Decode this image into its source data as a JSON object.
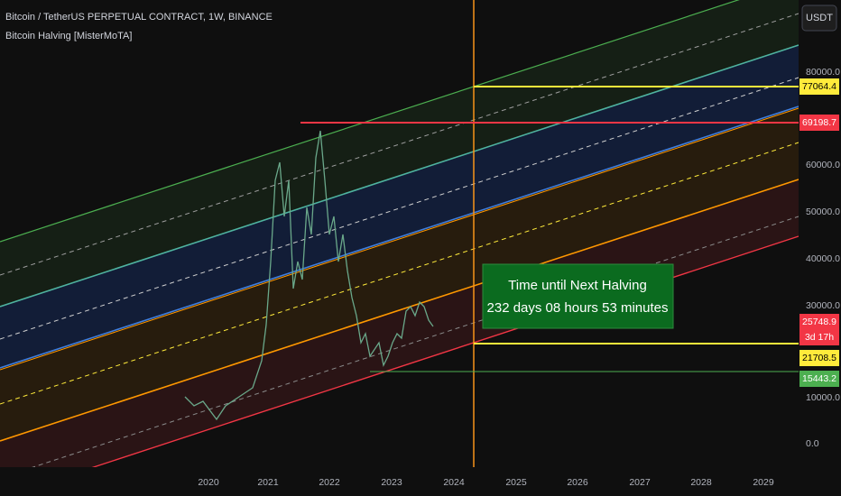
{
  "header": {
    "title": "Bitcoin / TetherUS PERPETUAL CONTRACT, 1W, BINANCE",
    "indicator": "Bitcoin Halving [MisterMoTA]",
    "currency": "USDT"
  },
  "y_axis": [
    "80000.0",
    "60000.0",
    "50000.0",
    "40000.0",
    "30000.0",
    "10000.0",
    "0.0"
  ],
  "x_axis": [
    "2020",
    "2021",
    "2022",
    "2023",
    "2024",
    "2025",
    "2026",
    "2027",
    "2028",
    "2029"
  ],
  "price_tags": {
    "upper_target": "77064.4",
    "ath": "69198.7",
    "last": "25748.9",
    "countdown": "3d 17h",
    "lower_target": "21708.5",
    "low": "15443.2"
  },
  "halving_box": {
    "line1": "Time until Next Halving",
    "line2": "232 days 08 hours 53 minutes"
  }
}
